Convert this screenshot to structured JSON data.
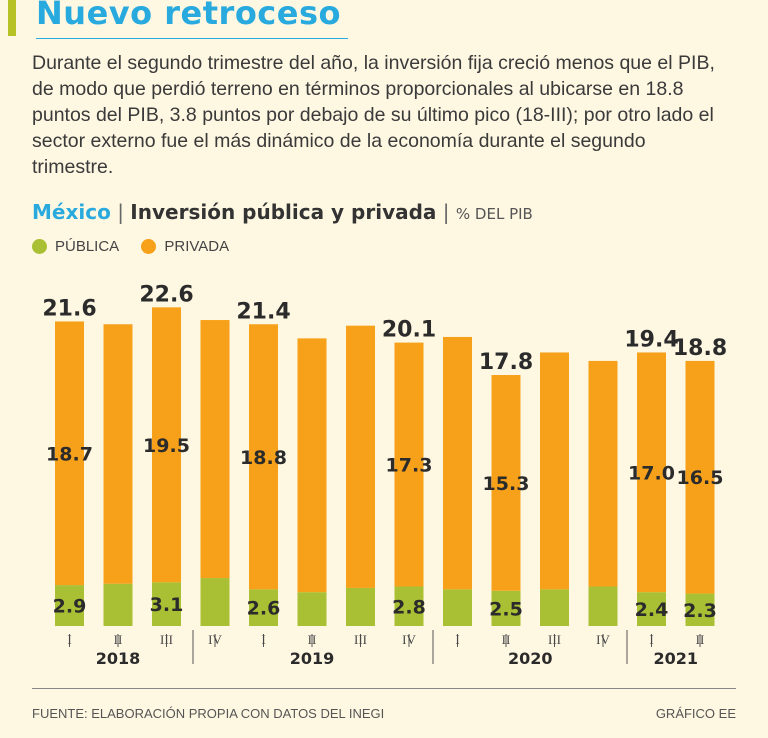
{
  "header": {
    "title": "Nuevo retroceso",
    "intro": "Durante el segundo trimestre del año, la inversión fija creció menos que el PIB, de modo que perdió terreno en términos proporcionales al ubicarse en 18.8 puntos del PIB, 3.8 puntos por debajo de su último pico (18-III); por otro lado el sector externo fue el más dinámico de la economía durante el segundo trimestre."
  },
  "subtitle": {
    "country": "México",
    "separator": "|",
    "main": "Inversión pública y privada",
    "unit": "% DEL PIB"
  },
  "colors": {
    "publica": "#a9c035",
    "privada": "#f7a11a",
    "accent": "#29aadf",
    "background": "#fef7e2"
  },
  "chart_data": {
    "type": "bar",
    "stacked": true,
    "categories": [
      "I",
      "II",
      "III",
      "IV",
      "I",
      "II",
      "III",
      "IV",
      "I",
      "II",
      "III",
      "IV",
      "I",
      "II"
    ],
    "years": [
      {
        "label": "2018",
        "start": 0,
        "end": 2
      },
      {
        "label": "2019",
        "start": 3,
        "end": 7
      },
      {
        "label": "2020",
        "start": 8,
        "end": 11
      },
      {
        "label": "2021",
        "start": 12,
        "end": 13
      }
    ],
    "series": [
      {
        "name": "PÚBLICA",
        "values": [
          2.9,
          3.0,
          3.1,
          3.4,
          2.6,
          2.4,
          2.7,
          2.8,
          2.6,
          2.5,
          2.6,
          2.8,
          2.4,
          2.3
        ]
      },
      {
        "name": "PRIVADA",
        "values": [
          18.7,
          18.4,
          19.5,
          18.3,
          18.8,
          18.0,
          18.6,
          17.3,
          17.9,
          15.3,
          16.8,
          16.0,
          17.0,
          16.5
        ]
      }
    ],
    "totals": [
      21.6,
      21.4,
      22.6,
      21.7,
      21.4,
      20.4,
      21.3,
      20.1,
      20.5,
      17.8,
      19.4,
      18.8,
      19.4,
      18.8
    ],
    "total_labels": [
      "21.6",
      "",
      "22.6",
      "",
      "21.4",
      "",
      "",
      "20.1",
      "",
      "17.8",
      "",
      "",
      "19.4",
      "18.8"
    ],
    "publica_labels": [
      "2.9",
      "",
      "3.1",
      "",
      "2.6",
      "",
      "",
      "2.8",
      "",
      "2.5",
      "",
      "",
      "2.4",
      "2.3"
    ],
    "privada_labels": [
      "18.7",
      "",
      "19.5",
      "",
      "18.8",
      "",
      "",
      "17.3",
      "",
      "15.3",
      "",
      "",
      "17.0",
      "16.5"
    ],
    "ylim": [
      0,
      22.6
    ]
  },
  "legend": [
    "PÚBLICA",
    "PRIVADA"
  ],
  "footer": {
    "source": "FUENTE: ELABORACIÓN PROPIA CON DATOS DEL INEGI",
    "credit": "GRÁFICO EE"
  }
}
